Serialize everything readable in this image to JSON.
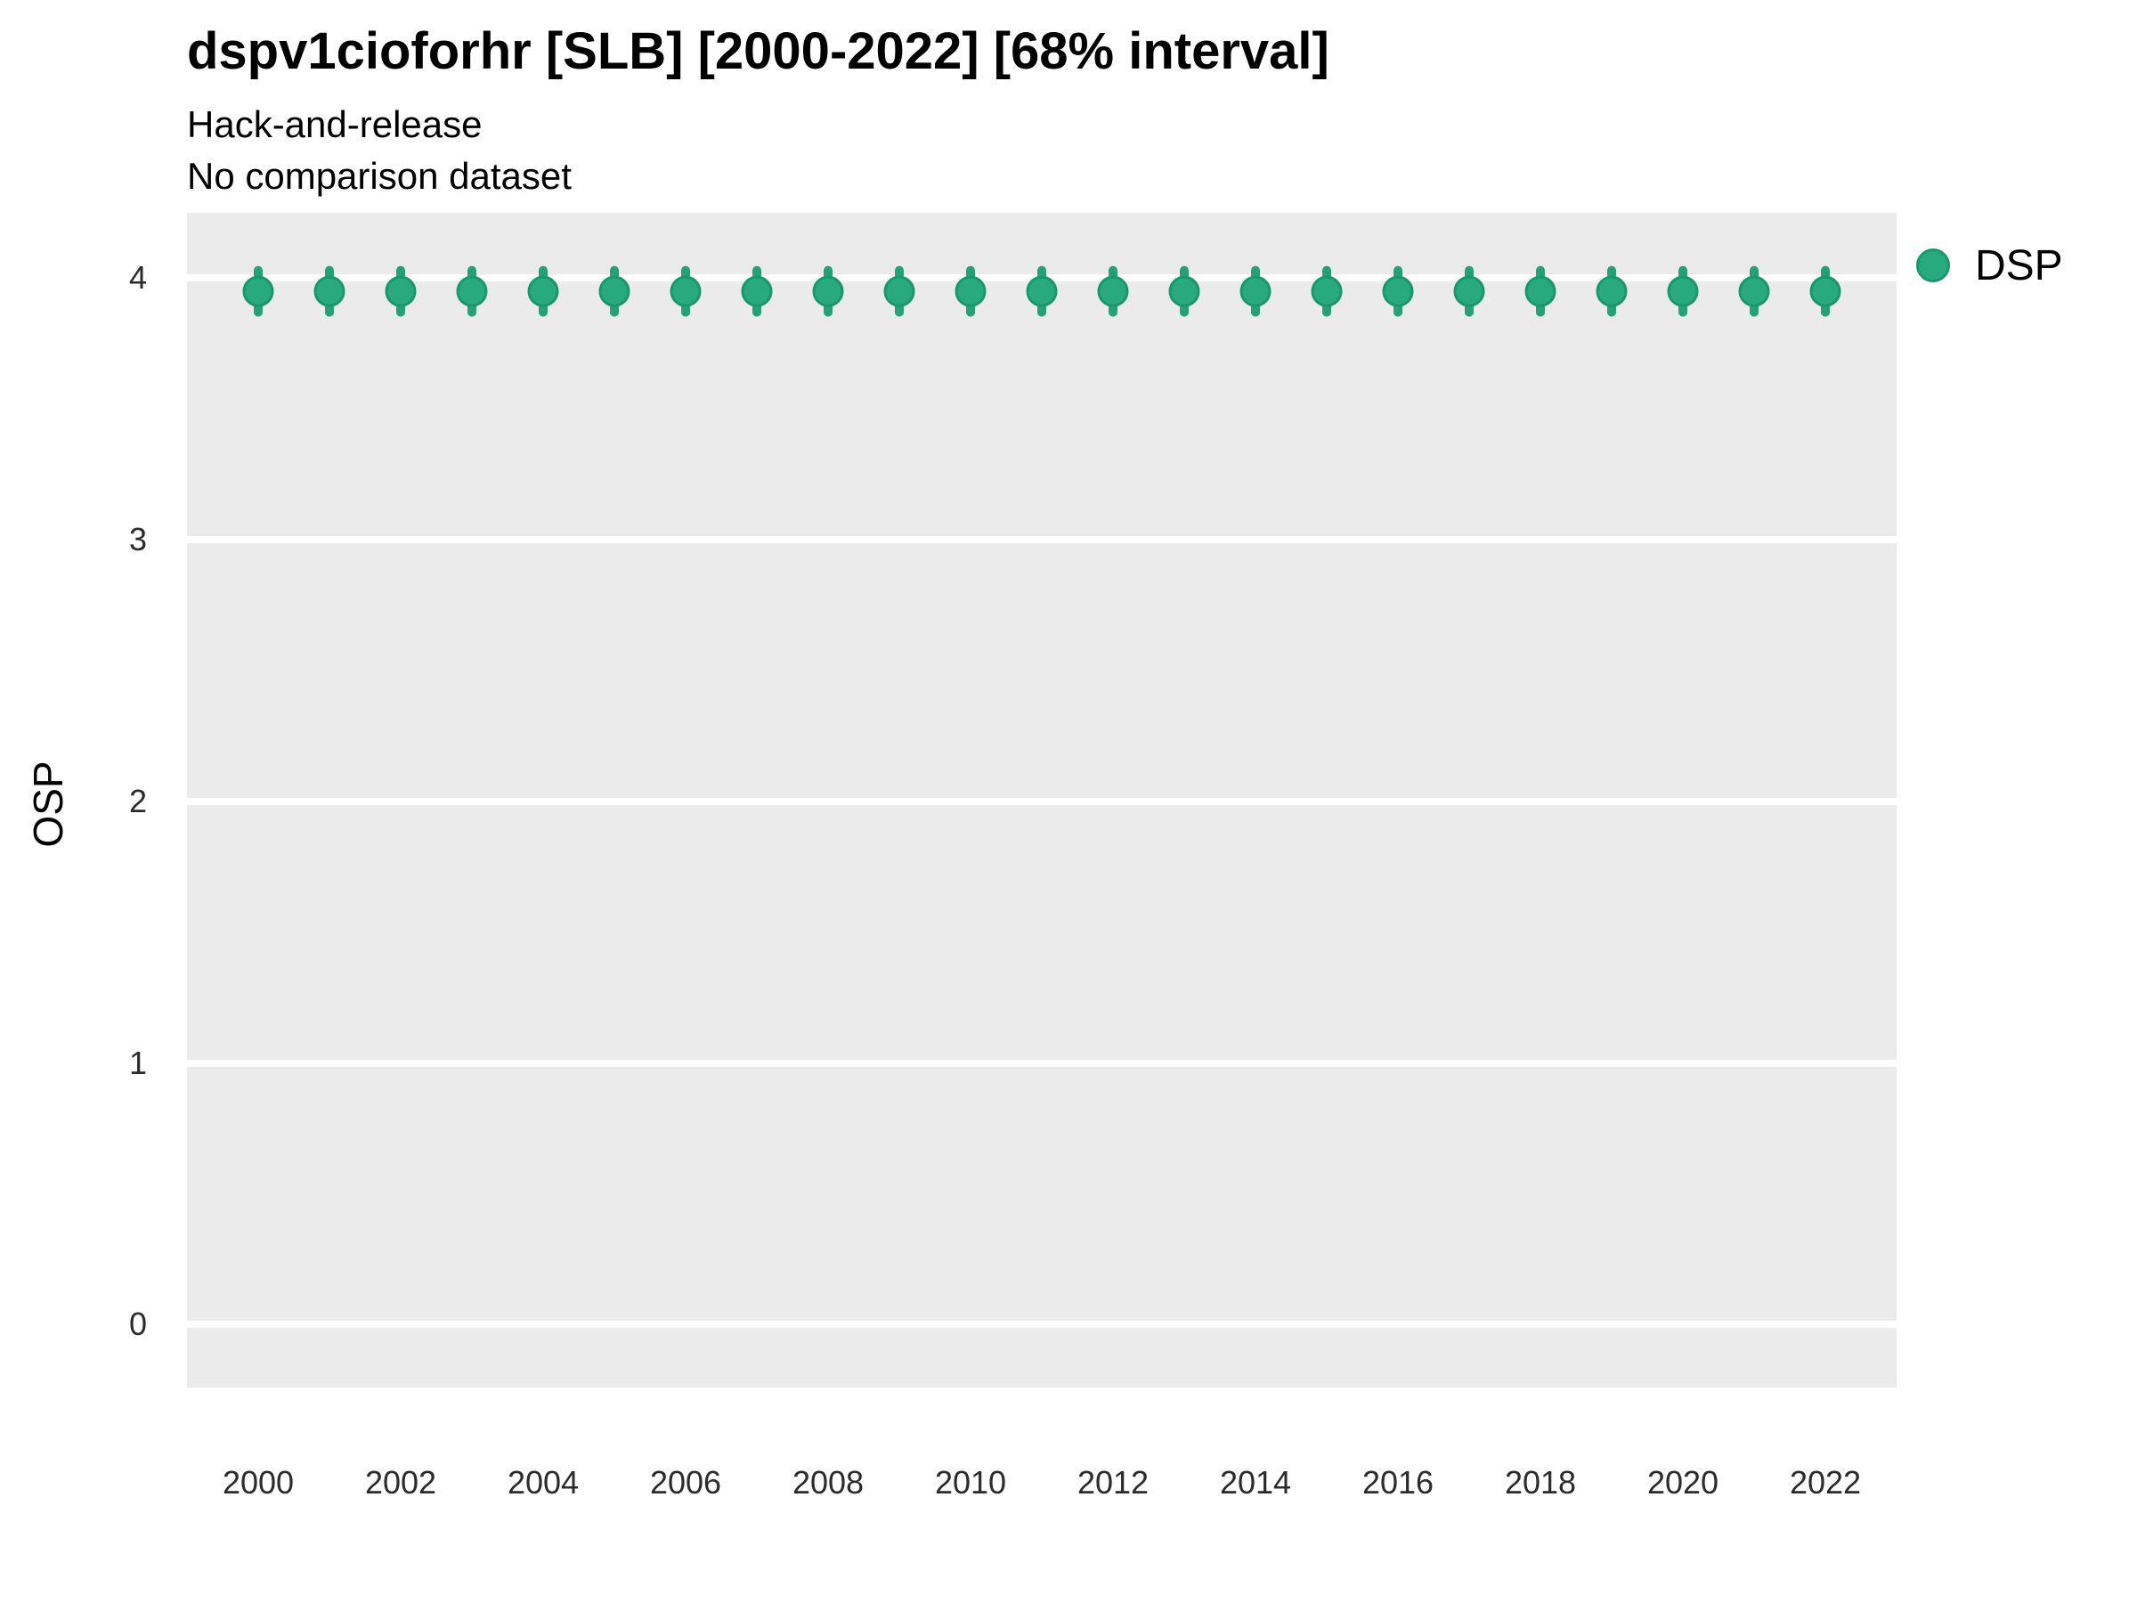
{
  "title": "dspv1cioforhr [SLB] [2000-2022] [68% interval]",
  "subtitle_line1": "Hack-and-release",
  "subtitle_line2": "No comparison dataset",
  "y_axis_label": "OSP",
  "legend": {
    "label": "DSP",
    "marker_fill": "#29A97E",
    "marker_stroke": "#1A986B"
  },
  "colors": {
    "panel_background": "#EBEBEB",
    "gridline": "#FFFFFF",
    "point_fill": "#29A97E",
    "point_stroke": "#1A986B",
    "interval_line": "#24A177",
    "tick_text": "#2B2B2B"
  },
  "chart_data": {
    "type": "scatter",
    "title": "dspv1cioforhr [SLB] [2000-2022] [68% interval]",
    "subtitle": [
      "Hack-and-release",
      "No comparison dataset"
    ],
    "xlabel": "",
    "ylabel": "OSP",
    "xlim": [
      1999,
      2023
    ],
    "ylim": [
      -0.24,
      4.25
    ],
    "x_ticks": [
      2000,
      2002,
      2004,
      2006,
      2008,
      2010,
      2012,
      2014,
      2016,
      2018,
      2020,
      2022
    ],
    "y_ticks": [
      0,
      1,
      2,
      3,
      4
    ],
    "grid": "horizontal-major-only",
    "legend_position": "right",
    "interval_level": "68%",
    "series": [
      {
        "name": "DSP",
        "color": "#29A97E",
        "x": [
          2000,
          2001,
          2002,
          2003,
          2004,
          2005,
          2006,
          2007,
          2008,
          2009,
          2010,
          2011,
          2012,
          2013,
          2014,
          2015,
          2016,
          2017,
          2018,
          2019,
          2020,
          2021,
          2022
        ],
        "y": [
          3.95,
          3.95,
          3.95,
          3.95,
          3.95,
          3.95,
          3.95,
          3.95,
          3.95,
          3.95,
          3.95,
          3.95,
          3.95,
          3.95,
          3.95,
          3.95,
          3.95,
          3.95,
          3.95,
          3.95,
          3.95,
          3.95,
          3.95
        ],
        "interval_low": [
          3.87,
          3.87,
          3.87,
          3.87,
          3.87,
          3.87,
          3.87,
          3.87,
          3.87,
          3.87,
          3.87,
          3.87,
          3.87,
          3.87,
          3.87,
          3.87,
          3.87,
          3.87,
          3.87,
          3.87,
          3.87,
          3.87,
          3.87
        ],
        "interval_high": [
          4.03,
          4.03,
          4.03,
          4.03,
          4.03,
          4.03,
          4.03,
          4.03,
          4.03,
          4.03,
          4.03,
          4.03,
          4.03,
          4.03,
          4.03,
          4.03,
          4.03,
          4.03,
          4.03,
          4.03,
          4.03,
          4.03,
          4.03
        ]
      }
    ]
  }
}
